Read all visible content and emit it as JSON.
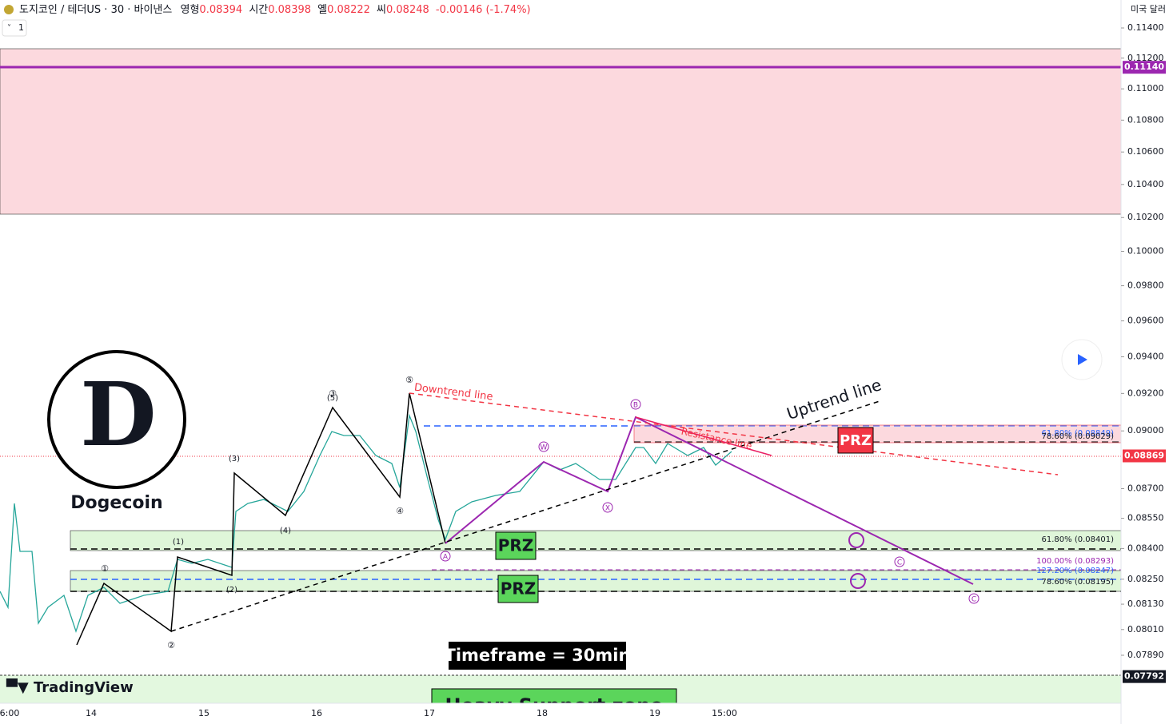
{
  "header": {
    "symbol": "도지코인 / 테더US · 30 · 바이낸스",
    "open_label": "영형",
    "open": "0.08394",
    "high_label": "시간",
    "high": "0.08398",
    "low_label": "옐",
    "low": "0.08222",
    "close_label": "씨",
    "close": "0.08248",
    "change": "-0.00146 (-1.74%)",
    "interval": "1"
  },
  "price_axis": {
    "currency": "미국 달러",
    "ticks": [
      {
        "value": 0.114,
        "label": "0.11400"
      },
      {
        "value": 0.112,
        "label": "0.11200"
      },
      {
        "value": 0.11,
        "label": "0.11000"
      },
      {
        "value": 0.108,
        "label": "0.10800"
      },
      {
        "value": 0.106,
        "label": "0.10600"
      },
      {
        "value": 0.104,
        "label": "0.10400"
      },
      {
        "value": 0.102,
        "label": "0.10200"
      },
      {
        "value": 0.1,
        "label": "0.10000"
      },
      {
        "value": 0.098,
        "label": "0.09800"
      },
      {
        "value": 0.096,
        "label": "0.09600"
      },
      {
        "value": 0.094,
        "label": "0.09400"
      },
      {
        "value": 0.092,
        "label": "0.09200"
      },
      {
        "value": 0.09,
        "label": "0.09000"
      },
      {
        "value": 0.087,
        "label": "0.08700"
      },
      {
        "value": 0.0855,
        "label": "0.08550"
      },
      {
        "value": 0.084,
        "label": "0.08400"
      },
      {
        "value": 0.0825,
        "label": "0.08250"
      },
      {
        "value": 0.0813,
        "label": "0.08130"
      },
      {
        "value": 0.0801,
        "label": "0.08010"
      },
      {
        "value": 0.0789,
        "label": "0.07890"
      }
    ],
    "markers": [
      {
        "value": 0.1114,
        "label": "0.11140",
        "color": "#9c27b0"
      },
      {
        "value": 0.08869,
        "label": "0.08869",
        "color": "#f23645"
      },
      {
        "value": 0.07792,
        "label": "0.07792",
        "color": "#131722"
      }
    ]
  },
  "time_axis": {
    "labels": [
      "6:00",
      "14",
      "15",
      "16",
      "17",
      "18",
      "19",
      "15:00"
    ]
  },
  "annotations": {
    "downtrend": "Downtrend line",
    "uptrend": "Uptrend line",
    "resistance": "Resistance line",
    "prz": [
      "PRZ",
      "PRZ",
      "PRZ"
    ],
    "logo": "Dogecoin",
    "timeframe": "Timeframe = 30min",
    "brand": "TradingView",
    "support": "Heavy Support zone",
    "fib": [
      "61.80% (0.08849)",
      "78.60% (0.09029)",
      "61.80% (0.08401)",
      "100.00% (0.08293)",
      "127.20% (0.08247)",
      "78.60% (0.08195)"
    ],
    "waves": [
      "①",
      "②",
      "③",
      "④",
      "⑤",
      "(1)",
      "(2)",
      "(3)",
      "(4)",
      "(5)",
      "A",
      "B",
      "C",
      "C",
      "W",
      "X"
    ]
  }
}
